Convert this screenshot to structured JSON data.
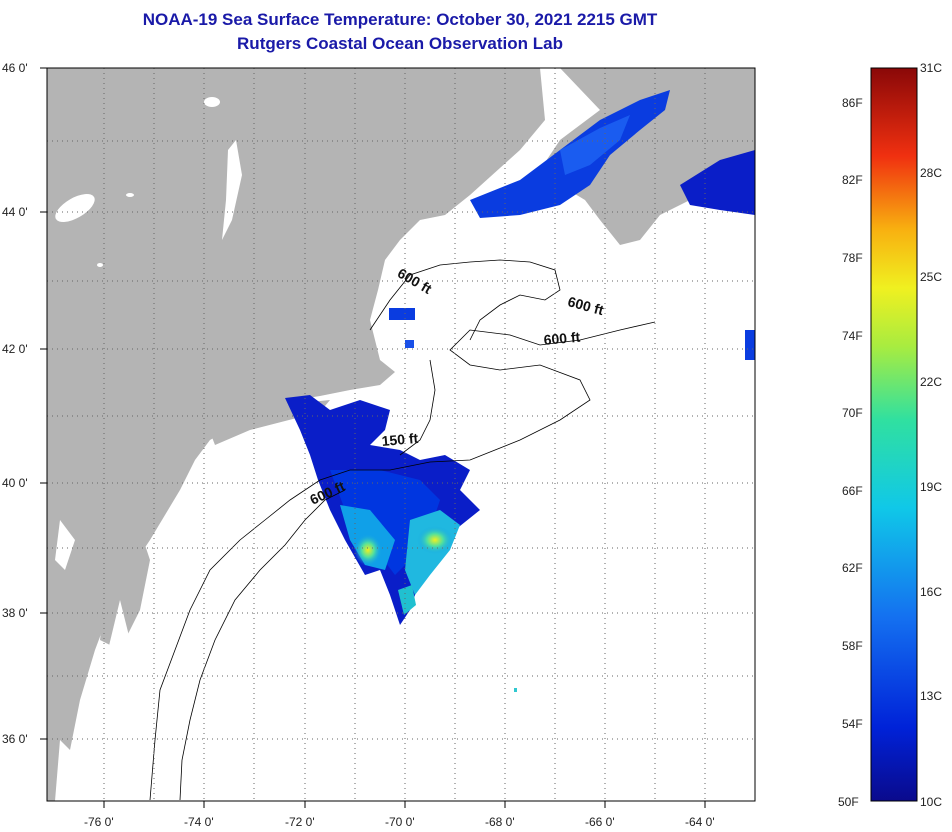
{
  "title_line1": "NOAA-19 Sea Surface Temperature:  October 30, 2021 2215 GMT",
  "title_line2": "Rutgers Coastal Ocean Observation Lab",
  "lat_labels": [
    "46 0'",
    "44 0'",
    "42 0'",
    "40 0'",
    "38 0'",
    "36 0'"
  ],
  "lon_labels": [
    "-76 0'",
    "-74 0'",
    "-72 0'",
    "-70 0'",
    "-68 0'",
    "-66 0'",
    "-64 0'"
  ],
  "contour_labels": [
    "600 ft",
    "600 ft",
    "600 ft",
    "150 ft",
    "600 ft"
  ],
  "colorbar": {
    "fahrenheit_labels": [
      "86F",
      "82F",
      "78F",
      "74F",
      "70F",
      "66F",
      "62F",
      "58F",
      "54F",
      "50F"
    ],
    "celsius_labels": [
      "31C",
      "28C",
      "25C",
      "22C",
      "19C",
      "16C",
      "13C",
      "10C"
    ]
  },
  "colors": {
    "land": "#b4b4b4",
    "ocean": "#ffffff",
    "title": "#1a1aa8",
    "sst_cold": "#0a1ec8",
    "sst_warm": "#f0f020"
  }
}
